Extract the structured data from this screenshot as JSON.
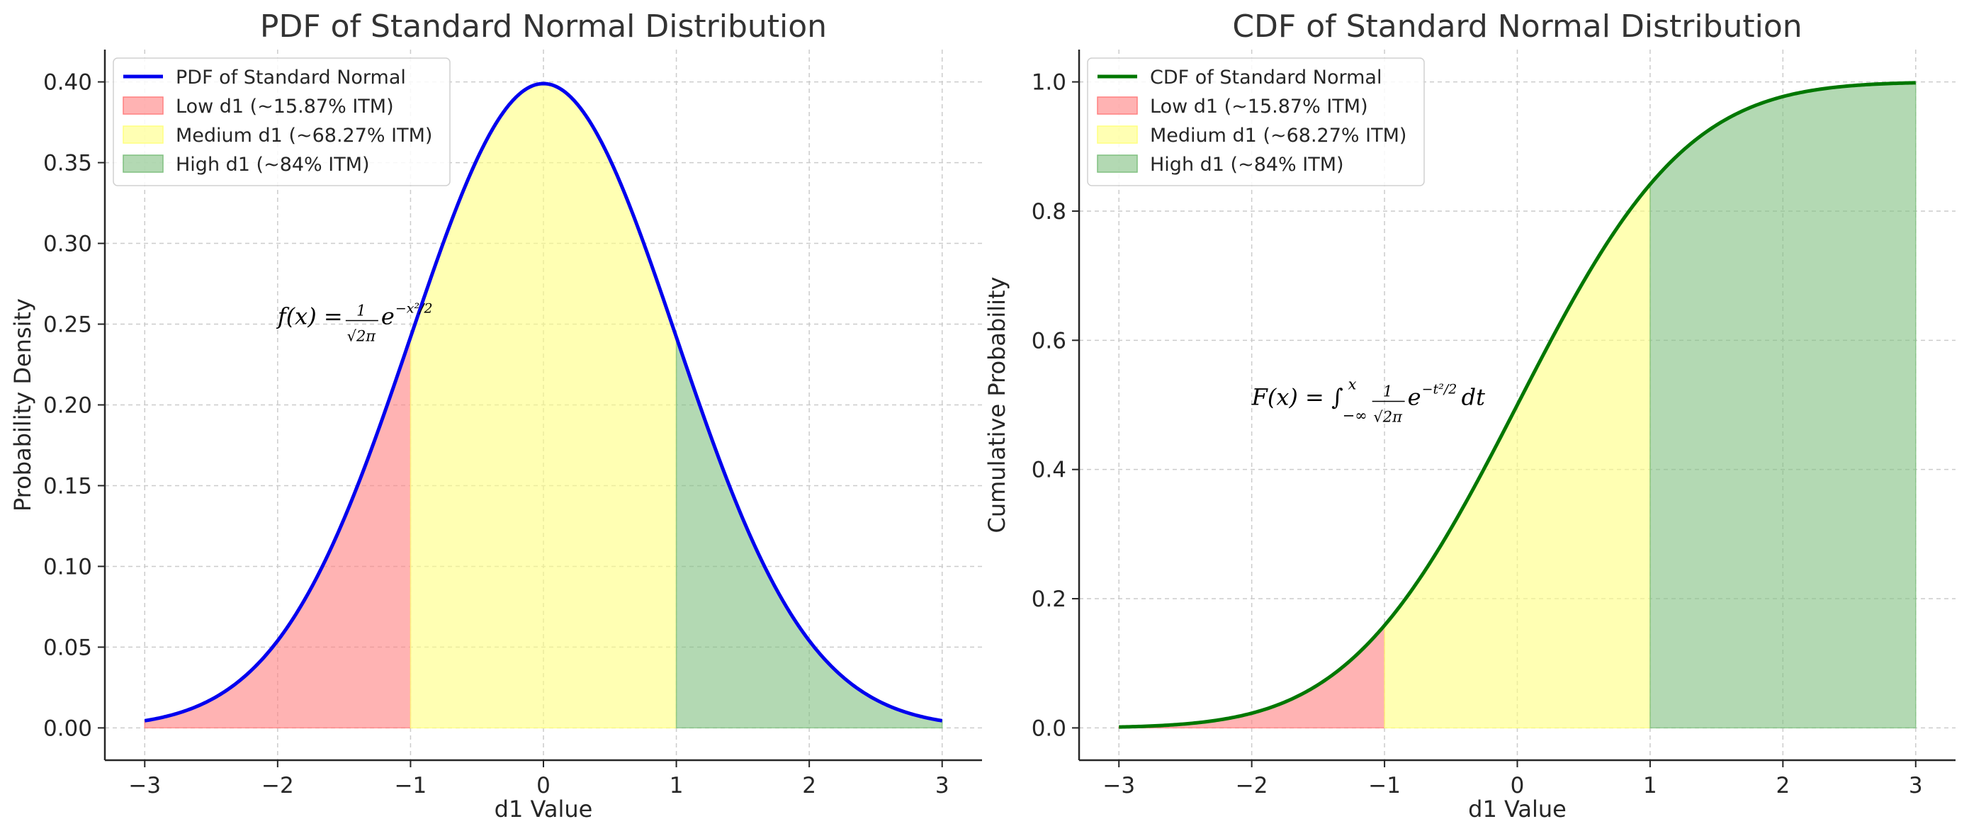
{
  "chart_data": [
    {
      "type": "line",
      "title": "PDF of Standard Normal Distribution",
      "xlabel": "d1 Value",
      "ylabel": "Probability Density",
      "xlim": [
        -3.3,
        3.3
      ],
      "ylim": [
        -0.02,
        0.42
      ],
      "xticks": [
        -3,
        -2,
        -1,
        0,
        1,
        2,
        3
      ],
      "xtick_labels": [
        "−3",
        "−2",
        "−1",
        "0",
        "1",
        "2",
        "3"
      ],
      "yticks": [
        0.0,
        0.05,
        0.1,
        0.15,
        0.2,
        0.25,
        0.3,
        0.35,
        0.4
      ],
      "ytick_labels": [
        "0.00",
        "0.05",
        "0.10",
        "0.15",
        "0.20",
        "0.25",
        "0.30",
        "0.35",
        "0.40"
      ],
      "grid": true,
      "legend_position": "top-left",
      "curve": {
        "name": "PDF of Standard Normal",
        "function": "pdf",
        "color": "#0000ee",
        "x": [
          -3.0,
          -2.5,
          -2.0,
          -1.5,
          -1.0,
          -0.5,
          0.0,
          0.5,
          1.0,
          1.5,
          2.0,
          2.5,
          3.0
        ],
        "y": [
          0.0044,
          0.0175,
          0.054,
          0.1295,
          0.242,
          0.3521,
          0.3989,
          0.3521,
          0.242,
          0.1295,
          0.054,
          0.0175,
          0.0044
        ]
      },
      "regions": [
        {
          "name": "Low d1 (~15.87% ITM)",
          "from": -3,
          "to": -1,
          "color": "#ff8080"
        },
        {
          "name": "Medium d1 (~68.27% ITM)",
          "from": -1,
          "to": 1,
          "color": "#ffff80"
        },
        {
          "name": "High d1 (~84% ITM)",
          "from": 1,
          "to": 3,
          "color": "#80c080"
        }
      ],
      "annotation": {
        "x": -2.0,
        "y": 0.25,
        "parts": {
          "lhs": "f(x) = ",
          "num": "1",
          "den": "√2π",
          "base": "e",
          "exp": "−x²/2"
        }
      }
    },
    {
      "type": "line",
      "title": "CDF of Standard Normal Distribution",
      "xlabel": "d1 Value",
      "ylabel": "Cumulative Probability",
      "xlim": [
        -3.3,
        3.3
      ],
      "ylim": [
        -0.05,
        1.05
      ],
      "xticks": [
        -3,
        -2,
        -1,
        0,
        1,
        2,
        3
      ],
      "xtick_labels": [
        "−3",
        "−2",
        "−1",
        "0",
        "1",
        "2",
        "3"
      ],
      "yticks": [
        0.0,
        0.2,
        0.4,
        0.6,
        0.8,
        1.0
      ],
      "ytick_labels": [
        "0.0",
        "0.2",
        "0.4",
        "0.6",
        "0.8",
        "1.0"
      ],
      "grid": true,
      "legend_position": "top-left",
      "curve": {
        "name": "CDF of Standard Normal",
        "function": "cdf",
        "color": "#007700",
        "x": [
          -3.0,
          -2.5,
          -2.0,
          -1.5,
          -1.0,
          -0.5,
          0.0,
          0.5,
          1.0,
          1.5,
          2.0,
          2.5,
          3.0
        ],
        "y": [
          0.0013,
          0.0062,
          0.0228,
          0.0668,
          0.1587,
          0.3085,
          0.5,
          0.6915,
          0.8413,
          0.9332,
          0.9772,
          0.9938,
          0.9987
        ]
      },
      "regions": [
        {
          "name": "Low d1 (~15.87% ITM)",
          "from": -3,
          "to": -1,
          "color": "#ff8080"
        },
        {
          "name": "Medium d1 (~68.27% ITM)",
          "from": -1,
          "to": 1,
          "color": "#ffff80"
        },
        {
          "name": "High d1 (~84% ITM)",
          "from": 1,
          "to": 3,
          "color": "#80c080"
        }
      ],
      "annotation": {
        "x": -2.0,
        "y": 0.5,
        "parts": {
          "lhs": "F(x) = ∫",
          "upper": "x",
          "lower": "−∞",
          "num": "1",
          "den": "√2π",
          "base": "e",
          "exp": "−t²/2",
          "tail": "dt"
        }
      }
    }
  ]
}
